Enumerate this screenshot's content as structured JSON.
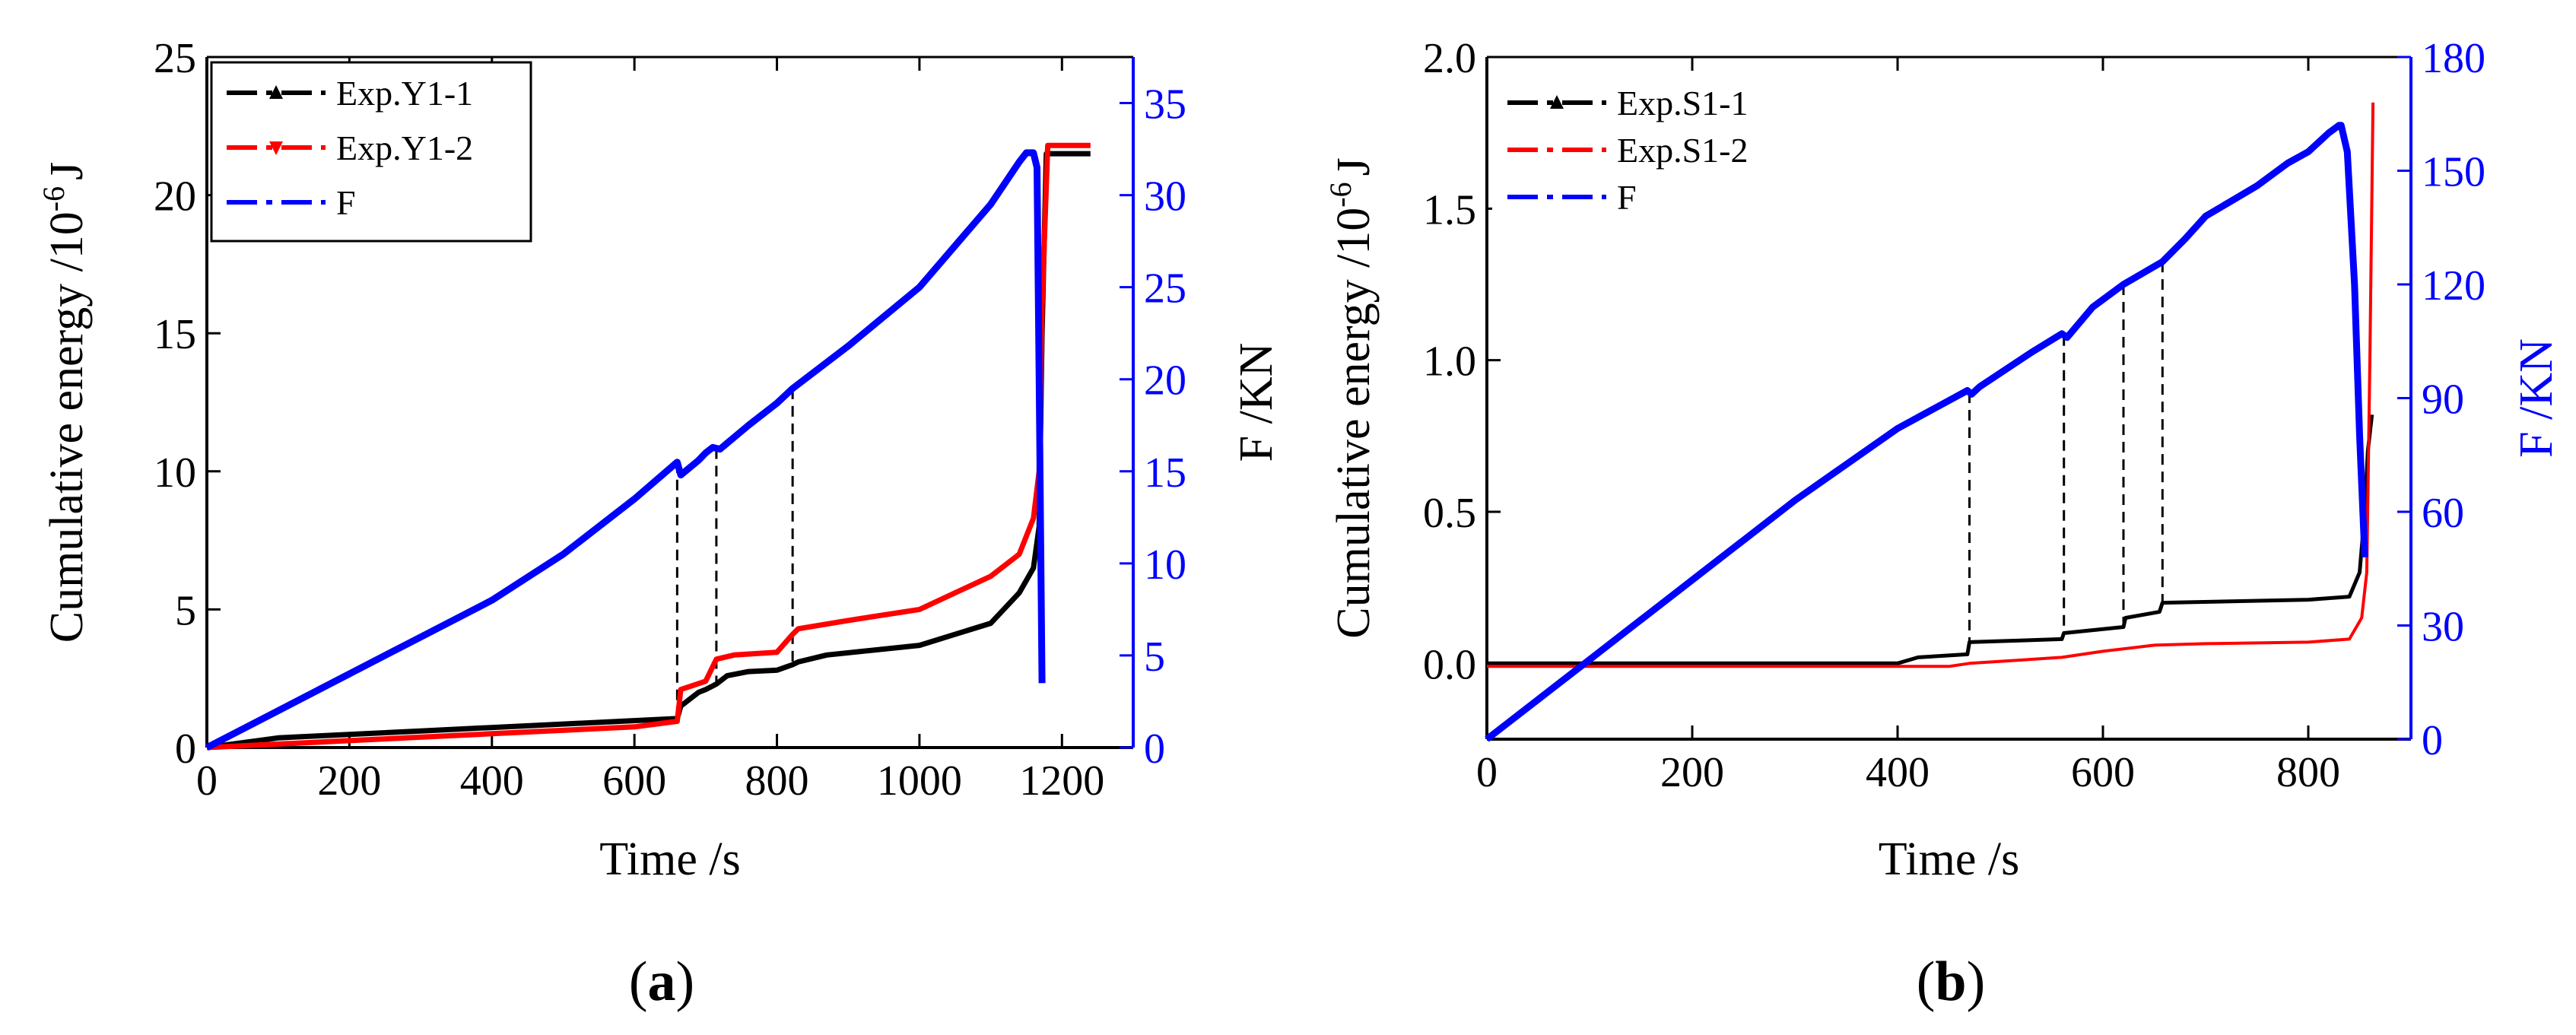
{
  "chart_data": [
    {
      "id": "a",
      "type": "line",
      "panel_label": "a",
      "xlabel": "Time  /s",
      "ylabel_left": "Cumulative energy /10",
      "ylabel_left_exp": "-6",
      "ylabel_left_unit": "J",
      "ylabel_right": "F /KN",
      "xlim": [
        0,
        1300
      ],
      "xticks": [
        0,
        200,
        400,
        600,
        800,
        1000,
        1200
      ],
      "ylim_left": [
        0,
        25
      ],
      "yticks_left": [
        0,
        5,
        10,
        15,
        20,
        25
      ],
      "ylim_right": [
        0,
        37.5
      ],
      "yticks_right": [
        0,
        5,
        10,
        15,
        20,
        25,
        30,
        35
      ],
      "legend": [
        {
          "label": "Exp.Y1-1",
          "color": "#000000",
          "marker": "up"
        },
        {
          "label": "Exp.Y1-2",
          "color": "#ff0000",
          "marker": "down"
        },
        {
          "label": "F",
          "color": "#0000ff",
          "marker": "none"
        }
      ],
      "series": [
        {
          "name": "Exp.Y1-1",
          "axis": "left",
          "color": "#000000",
          "width": 7,
          "x": [
            0,
            100,
            300,
            500,
            660,
            665,
            690,
            700,
            715,
            730,
            760,
            800,
            822,
            830,
            870,
            1000,
            1100,
            1140,
            1160,
            1168,
            1172,
            1178,
            1240
          ],
          "y": [
            0,
            0.35,
            0.6,
            0.85,
            1.05,
            1.5,
            2.0,
            2.1,
            2.3,
            2.6,
            2.75,
            2.8,
            3.0,
            3.1,
            3.35,
            3.7,
            4.5,
            5.6,
            6.5,
            8.0,
            15.0,
            21.5,
            21.5
          ]
        },
        {
          "name": "Exp.Y1-2",
          "axis": "left",
          "color": "#ff0000",
          "width": 7,
          "x": [
            0,
            200,
            400,
            600,
            660,
            665,
            700,
            715,
            740,
            800,
            822,
            830,
            900,
            1000,
            1100,
            1140,
            1160,
            1168,
            1172,
            1180,
            1240
          ],
          "y": [
            0,
            0.25,
            0.5,
            0.75,
            0.95,
            2.1,
            2.4,
            3.2,
            3.35,
            3.45,
            4.1,
            4.3,
            4.6,
            5.0,
            6.2,
            7.0,
            8.3,
            10.0,
            16.0,
            21.8,
            21.8
          ]
        },
        {
          "name": "F",
          "axis": "right",
          "color": "#0000ff",
          "width": 9,
          "x": [
            0,
            100,
            200,
            300,
            400,
            500,
            600,
            660,
            665,
            690,
            700,
            710,
            720,
            760,
            800,
            822,
            900,
            1000,
            1100,
            1140,
            1150,
            1160,
            1165,
            1168,
            1172
          ],
          "y": [
            0,
            2.0,
            4.0,
            6.0,
            8.0,
            10.5,
            13.5,
            15.5,
            14.8,
            15.6,
            16.0,
            16.3,
            16.2,
            17.5,
            18.7,
            19.5,
            21.8,
            25.0,
            29.5,
            31.8,
            32.3,
            32.3,
            31.5,
            20.0,
            3.5
          ]
        }
      ],
      "dashed_x": [
        660,
        715,
        822
      ]
    },
    {
      "id": "b",
      "type": "line",
      "panel_label": "b",
      "xlabel": "Time  /s",
      "ylabel_left": "Cumulative energy /10",
      "ylabel_left_exp": "-6",
      "ylabel_left_unit": "J",
      "ylabel_right": "F /KN",
      "xlim": [
        0,
        900
      ],
      "xticks": [
        0,
        200,
        400,
        600,
        800
      ],
      "ylim_left": [
        -0.25,
        2.0
      ],
      "yticks_left": [
        0.0,
        0.5,
        1.0,
        1.5,
        2.0
      ],
      "ylim_right": [
        0,
        180
      ],
      "yticks_right": [
        0,
        30,
        60,
        90,
        120,
        150,
        180
      ],
      "legend": [
        {
          "label": "Exp.S1-1",
          "color": "#000000",
          "marker": "up"
        },
        {
          "label": "Exp.S1-2",
          "color": "#ff0000",
          "marker": "none"
        },
        {
          "label": "F",
          "color": "#0000ff",
          "marker": "none"
        }
      ],
      "series": [
        {
          "name": "Exp.S1-1",
          "axis": "left",
          "color": "#000000",
          "width": 5,
          "x": [
            0,
            400,
            420,
            468,
            470,
            560,
            562,
            620,
            622,
            655,
            658,
            800,
            840,
            850,
            855,
            858,
            862
          ],
          "y": [
            0,
            0,
            0.02,
            0.03,
            0.07,
            0.08,
            0.1,
            0.12,
            0.15,
            0.17,
            0.2,
            0.21,
            0.22,
            0.3,
            0.5,
            0.7,
            0.82
          ]
        },
        {
          "name": "Exp.S1-2",
          "axis": "left",
          "color": "#ff0000",
          "width": 4,
          "x": [
            0,
            450,
            470,
            560,
            600,
            650,
            700,
            800,
            840,
            852,
            857,
            860,
            863
          ],
          "y": [
            -0.01,
            -0.01,
            0.0,
            0.02,
            0.04,
            0.06,
            0.065,
            0.07,
            0.08,
            0.15,
            0.3,
            1.0,
            1.85
          ]
        },
        {
          "name": "F",
          "axis": "right",
          "color": "#0000ff",
          "width": 9,
          "x": [
            0,
            100,
            200,
            300,
            400,
            468,
            472,
            480,
            530,
            560,
            565,
            590,
            620,
            658,
            680,
            700,
            750,
            780,
            800,
            820,
            830,
            832,
            838,
            845,
            850,
            855
          ],
          "y": [
            0,
            21,
            42,
            63,
            82,
            92,
            91,
            93,
            102,
            107,
            106,
            114,
            120,
            126,
            132,
            138,
            146,
            152,
            155,
            160,
            162,
            162,
            155,
            120,
            80,
            48
          ]
        }
      ],
      "dashed_x": [
        470,
        562,
        620,
        658
      ]
    }
  ]
}
